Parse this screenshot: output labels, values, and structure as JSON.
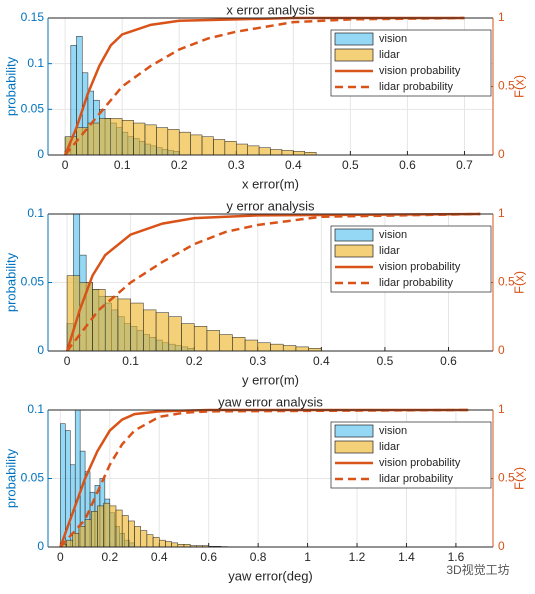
{
  "chart_data": [
    {
      "type": "histogram",
      "title": "x error analysis",
      "x_label": "x error(m)",
      "y_label": "probability",
      "y2_label": "F(x)",
      "xlim": [
        -0.03,
        0.75
      ],
      "xticks": [
        0,
        0.1,
        0.2,
        0.3,
        0.4,
        0.5,
        0.6,
        0.7
      ],
      "ylim": [
        0,
        0.15
      ],
      "yticks": [
        0,
        0.05,
        0.1,
        0.15
      ],
      "y2lim": [
        0,
        1
      ],
      "y2ticks": [
        0,
        0.5,
        1
      ],
      "grid": true,
      "legend": "upper right",
      "series": [
        {
          "name": "vision",
          "kind": "histogram",
          "color": "#4dbeee",
          "bins": [
            0,
            0.01,
            0.02,
            0.03,
            0.04,
            0.05,
            0.06,
            0.07,
            0.08,
            0.09,
            0.1,
            0.11,
            0.12,
            0.13,
            0.14,
            0.15,
            0.16,
            0.17,
            0.18,
            0.19,
            0.2
          ],
          "values": [
            0.02,
            0.12,
            0.13,
            0.09,
            0.07,
            0.06,
            0.05,
            0.04,
            0.035,
            0.03,
            0.025,
            0.02,
            0.018,
            0.015,
            0.012,
            0.01,
            0.008,
            0.006,
            0.005,
            0.004
          ]
        },
        {
          "name": "lidar",
          "kind": "histogram",
          "color": "#edb120",
          "bins": [
            0,
            0.02,
            0.04,
            0.06,
            0.08,
            0.1,
            0.12,
            0.14,
            0.16,
            0.18,
            0.2,
            0.22,
            0.24,
            0.26,
            0.28,
            0.3,
            0.32,
            0.34,
            0.36,
            0.38,
            0.4,
            0.42,
            0.44
          ],
          "values": [
            0.02,
            0.03,
            0.035,
            0.04,
            0.04,
            0.038,
            0.035,
            0.033,
            0.03,
            0.028,
            0.025,
            0.022,
            0.02,
            0.017,
            0.015,
            0.012,
            0.01,
            0.008,
            0.006,
            0.005,
            0.004,
            0.003
          ]
        },
        {
          "name": "vision probability",
          "kind": "line",
          "axis": "y2",
          "color": "#d95319",
          "dash": false,
          "x": [
            0,
            0.02,
            0.04,
            0.06,
            0.08,
            0.1,
            0.15,
            0.2,
            0.3,
            0.4,
            0.5,
            0.7
          ],
          "values": [
            0,
            0.2,
            0.45,
            0.65,
            0.8,
            0.88,
            0.95,
            0.98,
            0.99,
            1,
            1,
            1
          ]
        },
        {
          "name": "lidar probability",
          "kind": "line",
          "axis": "y2",
          "color": "#d95319",
          "dash": true,
          "x": [
            0,
            0.05,
            0.1,
            0.15,
            0.2,
            0.25,
            0.3,
            0.4,
            0.5,
            0.7
          ],
          "values": [
            0,
            0.25,
            0.5,
            0.65,
            0.77,
            0.85,
            0.9,
            0.97,
            0.99,
            1
          ]
        }
      ]
    },
    {
      "type": "histogram",
      "title": "y error analysis",
      "x_label": "y error(m)",
      "y_label": "probability",
      "y2_label": "F(x)",
      "xlim": [
        -0.03,
        0.67
      ],
      "xticks": [
        0,
        0.1,
        0.2,
        0.3,
        0.4,
        0.5,
        0.6
      ],
      "ylim": [
        0,
        0.1
      ],
      "yticks": [
        0,
        0.05,
        0.1
      ],
      "y2lim": [
        0,
        1
      ],
      "y2ticks": [
        0,
        0.5,
        1
      ],
      "grid": true,
      "legend": "upper right",
      "series": [
        {
          "name": "vision",
          "kind": "histogram",
          "color": "#4dbeee",
          "bins": [
            0,
            0.01,
            0.02,
            0.03,
            0.04,
            0.05,
            0.06,
            0.07,
            0.08,
            0.09,
            0.1,
            0.11,
            0.12,
            0.13,
            0.14,
            0.15,
            0.16,
            0.17,
            0.18,
            0.19,
            0.2
          ],
          "values": [
            0.02,
            0.1,
            0.07,
            0.05,
            0.045,
            0.04,
            0.035,
            0.03,
            0.025,
            0.02,
            0.018,
            0.015,
            0.012,
            0.01,
            0.008,
            0.006,
            0.005,
            0.004,
            0.003,
            0.002
          ]
        },
        {
          "name": "lidar",
          "kind": "histogram",
          "color": "#edb120",
          "bins": [
            0,
            0.02,
            0.04,
            0.06,
            0.08,
            0.1,
            0.12,
            0.14,
            0.16,
            0.18,
            0.2,
            0.22,
            0.24,
            0.26,
            0.28,
            0.3,
            0.32,
            0.34,
            0.36,
            0.38,
            0.4
          ],
          "values": [
            0.055,
            0.05,
            0.045,
            0.04,
            0.038,
            0.035,
            0.03,
            0.028,
            0.025,
            0.02,
            0.018,
            0.015,
            0.012,
            0.01,
            0.008,
            0.006,
            0.005,
            0.004,
            0.003,
            0.002
          ]
        },
        {
          "name": "vision probability",
          "kind": "line",
          "axis": "y2",
          "color": "#d95319",
          "dash": false,
          "x": [
            0,
            0.02,
            0.04,
            0.06,
            0.1,
            0.15,
            0.2,
            0.3,
            0.65
          ],
          "values": [
            0,
            0.3,
            0.55,
            0.7,
            0.85,
            0.93,
            0.97,
            0.99,
            1
          ]
        },
        {
          "name": "lidar probability",
          "kind": "line",
          "axis": "y2",
          "color": "#d95319",
          "dash": true,
          "x": [
            0,
            0.05,
            0.1,
            0.15,
            0.2,
            0.25,
            0.3,
            0.4,
            0.65
          ],
          "values": [
            0,
            0.3,
            0.5,
            0.65,
            0.78,
            0.87,
            0.92,
            0.98,
            1
          ]
        }
      ]
    },
    {
      "type": "histogram",
      "title": "yaw error analysis",
      "x_label": "yaw error(deg)",
      "y_label": "probability",
      "y2_label": "F(x)",
      "xlim": [
        -0.05,
        1.75
      ],
      "xticks": [
        0,
        0.2,
        0.4,
        0.6,
        0.8,
        1,
        1.2,
        1.4,
        1.6
      ],
      "ylim": [
        0,
        0.1
      ],
      "yticks": [
        0,
        0.05,
        0.1
      ],
      "y2lim": [
        0,
        1
      ],
      "y2ticks": [
        0,
        0.5,
        1
      ],
      "grid": true,
      "legend": "upper right",
      "series": [
        {
          "name": "vision",
          "kind": "histogram",
          "color": "#4dbeee",
          "bins": [
            0,
            0.02,
            0.04,
            0.06,
            0.08,
            0.1,
            0.12,
            0.14,
            0.16,
            0.18,
            0.2,
            0.22,
            0.24,
            0.26,
            0.28,
            0.3
          ],
          "values": [
            0.09,
            0.085,
            0.06,
            0.1,
            0.07,
            0.055,
            0.04,
            0.045,
            0.05,
            0.035,
            0.025,
            0.015,
            0.01,
            0.005,
            0.003
          ]
        },
        {
          "name": "lidar",
          "kind": "histogram",
          "color": "#edb120",
          "bins": [
            0,
            0.025,
            0.05,
            0.075,
            0.1,
            0.125,
            0.15,
            0.175,
            0.2,
            0.225,
            0.25,
            0.275,
            0.3,
            0.325,
            0.35,
            0.375,
            0.4,
            0.425,
            0.45,
            0.475,
            0.5,
            0.525,
            0.55,
            0.575,
            0.6,
            0.625,
            0.65,
            0.675,
            0.7
          ],
          "values": [
            0.002,
            0.005,
            0.01,
            0.015,
            0.02,
            0.026,
            0.03,
            0.032,
            0.03,
            0.027,
            0.023,
            0.019,
            0.015,
            0.012,
            0.009,
            0.007,
            0.005,
            0.004,
            0.003,
            0.002,
            0.002,
            0.001,
            0.001,
            0.001,
            0.0005,
            0.0005,
            0.0003,
            0.0002
          ]
        },
        {
          "name": "vision probability",
          "kind": "line",
          "axis": "y2",
          "color": "#d95319",
          "dash": false,
          "x": [
            0,
            0.05,
            0.1,
            0.15,
            0.2,
            0.25,
            0.3,
            0.4,
            0.6,
            1.65
          ],
          "values": [
            0,
            0.25,
            0.5,
            0.7,
            0.85,
            0.93,
            0.97,
            0.99,
            1,
            1
          ]
        },
        {
          "name": "lidar probability",
          "kind": "line",
          "axis": "y2",
          "color": "#d95319",
          "dash": true,
          "x": [
            0,
            0.1,
            0.15,
            0.2,
            0.25,
            0.3,
            0.4,
            0.5,
            0.6,
            1.65
          ],
          "values": [
            0,
            0.2,
            0.4,
            0.6,
            0.75,
            0.85,
            0.95,
            0.98,
            0.99,
            1
          ]
        }
      ]
    }
  ],
  "watermark": "3D视觉工坊"
}
